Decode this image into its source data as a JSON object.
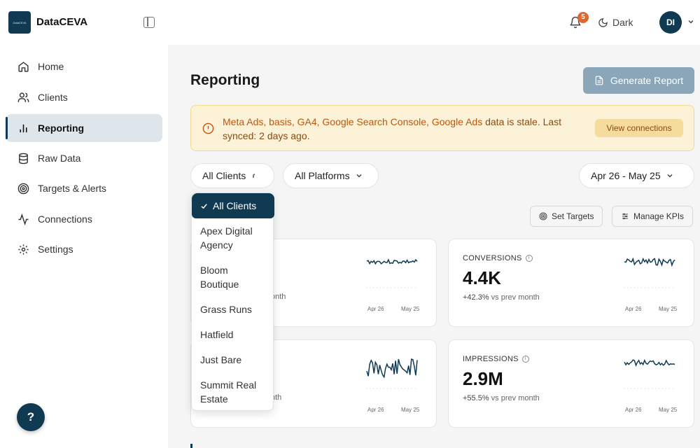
{
  "app": {
    "logo_text": "DataCEVA",
    "brand": "DataCEVA"
  },
  "header": {
    "notification_count": "5",
    "theme_label": "Dark",
    "avatar_initials": "DI"
  },
  "sidebar": {
    "items": [
      {
        "label": "Home",
        "icon": "home-icon",
        "active": false
      },
      {
        "label": "Clients",
        "icon": "users-icon",
        "active": false
      },
      {
        "label": "Reporting",
        "icon": "bar-chart-icon",
        "active": true
      },
      {
        "label": "Raw Data",
        "icon": "database-icon",
        "active": false
      },
      {
        "label": "Targets & Alerts",
        "icon": "target-icon",
        "active": false
      },
      {
        "label": "Connections",
        "icon": "activity-icon",
        "active": false
      },
      {
        "label": "Settings",
        "icon": "gear-icon",
        "active": false
      }
    ],
    "help_label": "?"
  },
  "page": {
    "title": "Reporting",
    "generate_button": "Generate Report"
  },
  "alert": {
    "sources": "Meta Ads, basis, GA4, Google Search Console, Google Ads",
    "message": " data is stale. Last synced: 2 days ago.",
    "action": "View connections"
  },
  "filters": {
    "client": "All Clients",
    "platform": "All Platforms",
    "date_range": "Apr 26 - May 25"
  },
  "actions": {
    "set_targets": "Set Targets",
    "manage_kpis": "Manage KPIs"
  },
  "dropdown": {
    "selected": "All Clients",
    "options": [
      [
        "Apex Digital",
        "Agency"
      ],
      [
        "Bloom",
        "Boutique"
      ],
      [
        "Grass Runs"
      ],
      [
        "Hatfield"
      ],
      [
        "Just Bare"
      ],
      [
        "Summit Real",
        "Estate"
      ]
    ]
  },
  "cards": [
    {
      "label": "",
      "value": "",
      "change_pct": "",
      "change_text": "onth",
      "spark_start": "Apr 26",
      "spark_end": "May 25"
    },
    {
      "label": "CONVERSIONS",
      "value": "4.4K",
      "change_pct": "+42.3%",
      "change_text": " vs prev month",
      "spark_start": "Apr 26",
      "spark_end": "May 25"
    },
    {
      "label": "",
      "value": "",
      "change_pct": "",
      "change_text": "nth",
      "spark_start": "Apr 26",
      "spark_end": "May 25"
    },
    {
      "label": "IMPRESSIONS",
      "value": "2.9M",
      "change_pct": "+55.5%",
      "change_text": " vs prev month",
      "spark_start": "Apr 26",
      "spark_end": "May 25"
    }
  ],
  "colors": {
    "brand": "#0f3a52",
    "accent_button": "#8aa6b8",
    "alert_bg": "#fbf2d8",
    "alert_text": "#c0560c",
    "badge": "#e0682d"
  }
}
